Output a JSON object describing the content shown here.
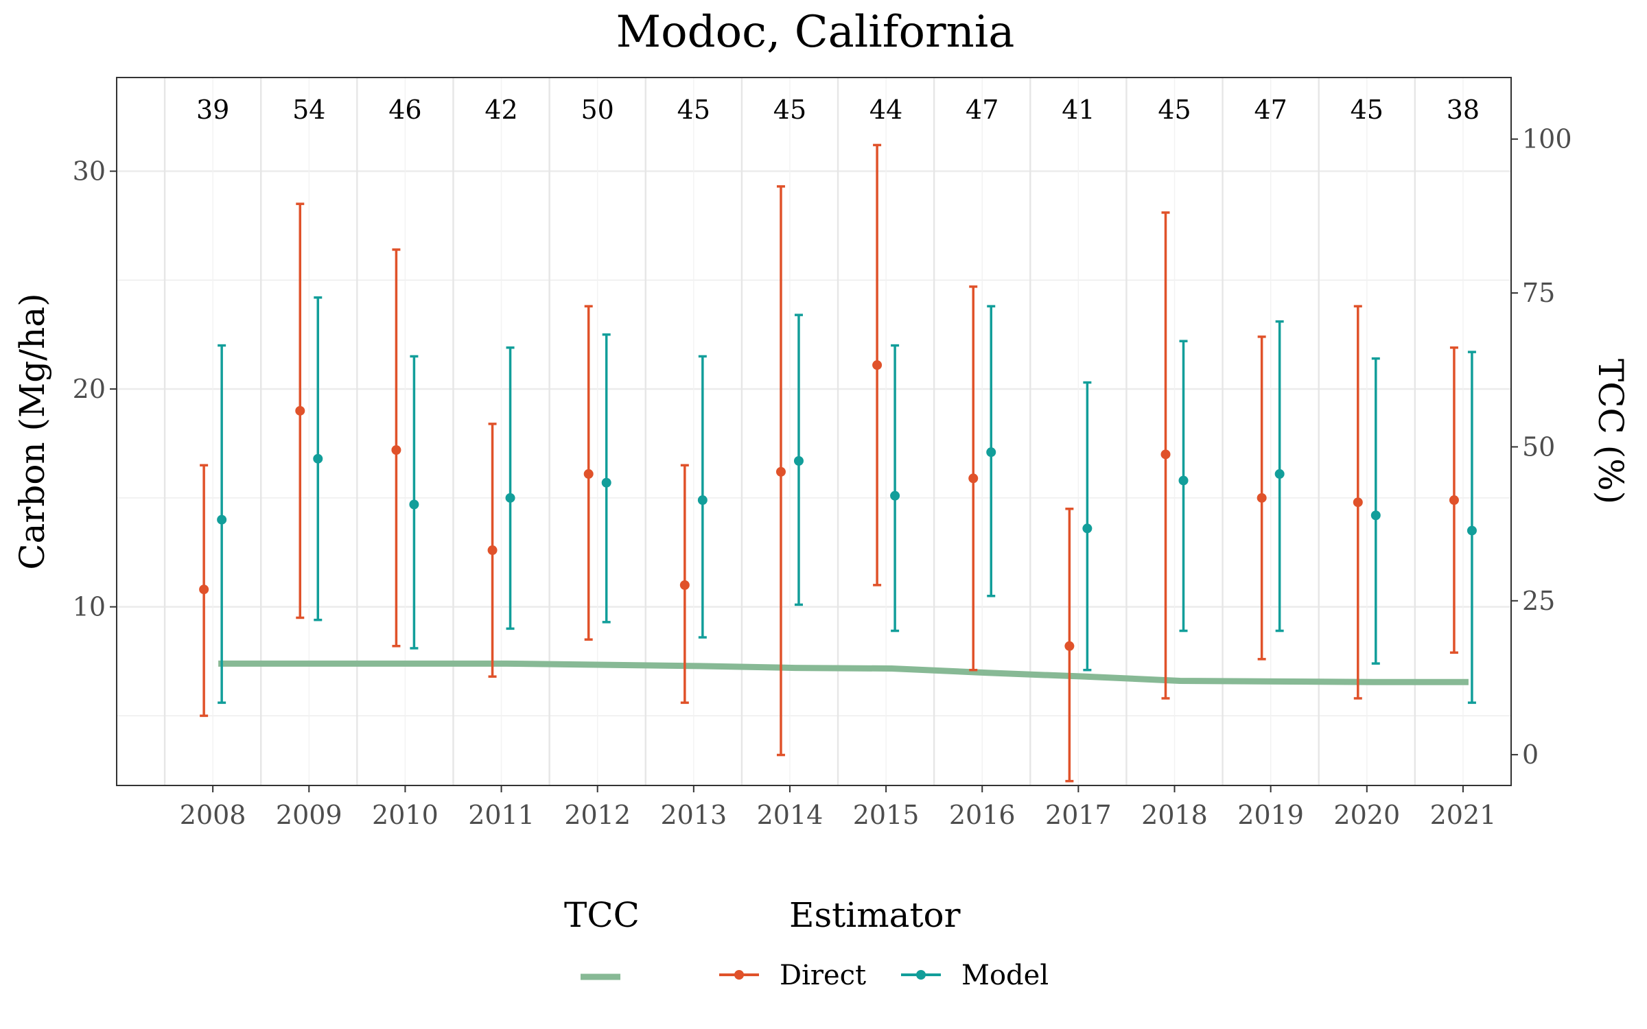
{
  "chart_data": {
    "type": "errorbar",
    "title": "Modoc, California",
    "ylabel": "Carbon (Mg/ha)",
    "y2label": "TCC (%)",
    "xlabel": "",
    "ylim": [
      1.8,
      34.3
    ],
    "y2lim": [
      -5,
      110
    ],
    "yticks": [
      10,
      20,
      30
    ],
    "y2ticks": [
      0,
      25,
      50,
      75,
      100
    ],
    "grid": true,
    "legend_placement": "bottom",
    "years": [
      "2008",
      "2009",
      "2010",
      "2011",
      "2012",
      "2013",
      "2014",
      "2015",
      "2016",
      "2017",
      "2018",
      "2019",
      "2020",
      "2021"
    ],
    "sample_sizes": [
      "39",
      "54",
      "46",
      "42",
      "50",
      "45",
      "45",
      "44",
      "47",
      "41",
      "45",
      "47",
      "45",
      "38"
    ],
    "series": [
      {
        "name": "Direct",
        "color": "#E0522A",
        "values": [
          10.8,
          19.0,
          17.2,
          12.6,
          16.1,
          11.0,
          16.2,
          21.1,
          15.9,
          8.2,
          17.0,
          15.0,
          14.8,
          14.9
        ],
        "lower": [
          5.0,
          9.5,
          8.2,
          6.8,
          8.5,
          5.6,
          3.2,
          11.0,
          7.1,
          2.0,
          5.8,
          7.6,
          5.8,
          7.9
        ],
        "upper": [
          16.5,
          28.5,
          26.4,
          18.4,
          23.8,
          16.5,
          29.3,
          31.2,
          24.7,
          14.5,
          28.1,
          22.4,
          23.8,
          21.9
        ]
      },
      {
        "name": "Model",
        "color": "#129E9A",
        "values": [
          14.0,
          16.8,
          14.7,
          15.0,
          15.7,
          14.9,
          16.7,
          15.1,
          17.1,
          13.6,
          15.8,
          16.1,
          14.2,
          13.5
        ],
        "lower": [
          5.6,
          9.4,
          8.1,
          9.0,
          9.3,
          8.6,
          10.1,
          8.9,
          10.5,
          7.1,
          8.9,
          8.9,
          7.4,
          5.6
        ],
        "upper": [
          22.0,
          24.2,
          21.5,
          21.9,
          22.5,
          21.5,
          23.4,
          22.0,
          23.8,
          20.3,
          22.2,
          23.1,
          21.4,
          21.7
        ]
      }
    ],
    "tcc": {
      "name": "TCC",
      "color": "#87B995",
      "values": [
        14.8,
        14.8,
        14.8,
        14.8,
        14.6,
        14.4,
        14.1,
        14.0,
        13.3,
        12.7,
        12.0,
        11.9,
        11.8,
        11.8
      ]
    },
    "legend": {
      "tcc_title": "TCC",
      "estimator_title": "Estimator",
      "items": [
        "Direct",
        "Model"
      ]
    }
  }
}
